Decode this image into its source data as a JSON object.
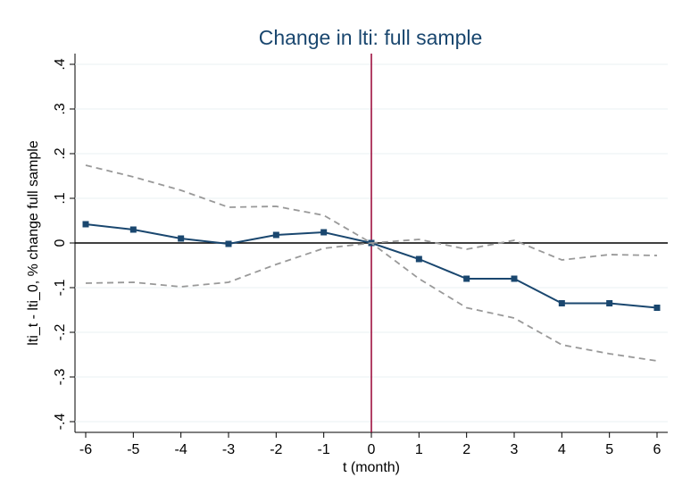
{
  "chart_data": {
    "type": "line",
    "title": "Change in lti: full sample",
    "x_label": "t (month)",
    "y_label": "lti_t - lti_0, % change full sample",
    "x": [
      -6,
      -5,
      -4,
      -3,
      -2,
      -1,
      0,
      1,
      2,
      3,
      4,
      5,
      6
    ],
    "series": [
      {
        "color": "#1a476f",
        "style": "solid",
        "markers": true,
        "values": [
          0.042,
          0.03,
          0.01,
          -0.002,
          0.018,
          0.024,
          0,
          -0.036,
          -0.08,
          -0.08,
          -0.135,
          -0.135,
          -0.145
        ]
      },
      {
        "color": "#999999",
        "style": "dashed",
        "markers": false,
        "values": [
          0.174,
          0.148,
          0.118,
          0.08,
          0.082,
          0.062,
          0,
          0.008,
          -0.014,
          0.006,
          -0.038,
          -0.026,
          -0.028
        ]
      },
      {
        "color": "#999999",
        "style": "dashed",
        "markers": false,
        "values": [
          -0.09,
          -0.088,
          -0.098,
          -0.088,
          -0.048,
          -0.012,
          0,
          -0.08,
          -0.145,
          -0.168,
          -0.228,
          -0.248,
          -0.264
        ]
      }
    ],
    "xlim": [
      -6,
      6
    ],
    "xticks": [
      -6,
      -5,
      -4,
      -3,
      -2,
      -1,
      0,
      1,
      2,
      3,
      4,
      5,
      6
    ],
    "ylim": [
      -0.4,
      0.4
    ],
    "yticks": [
      {
        "value": -0.4,
        "label": "-.4"
      },
      {
        "value": -0.3,
        "label": "-.3"
      },
      {
        "value": -0.2,
        "label": "-.2"
      },
      {
        "value": -0.1,
        "label": "-.1"
      },
      0,
      {
        "value": 0.1,
        "label": ".1"
      },
      {
        "value": 0.2,
        "label": ".2"
      },
      {
        "value": 0.3,
        "label": ".3"
      },
      {
        "value": 0.4,
        "label": ".4"
      }
    ],
    "grid": true,
    "xline": {
      "value": 0,
      "color": "#990033"
    },
    "yline": {
      "value": 0,
      "color": "#000000"
    }
  }
}
